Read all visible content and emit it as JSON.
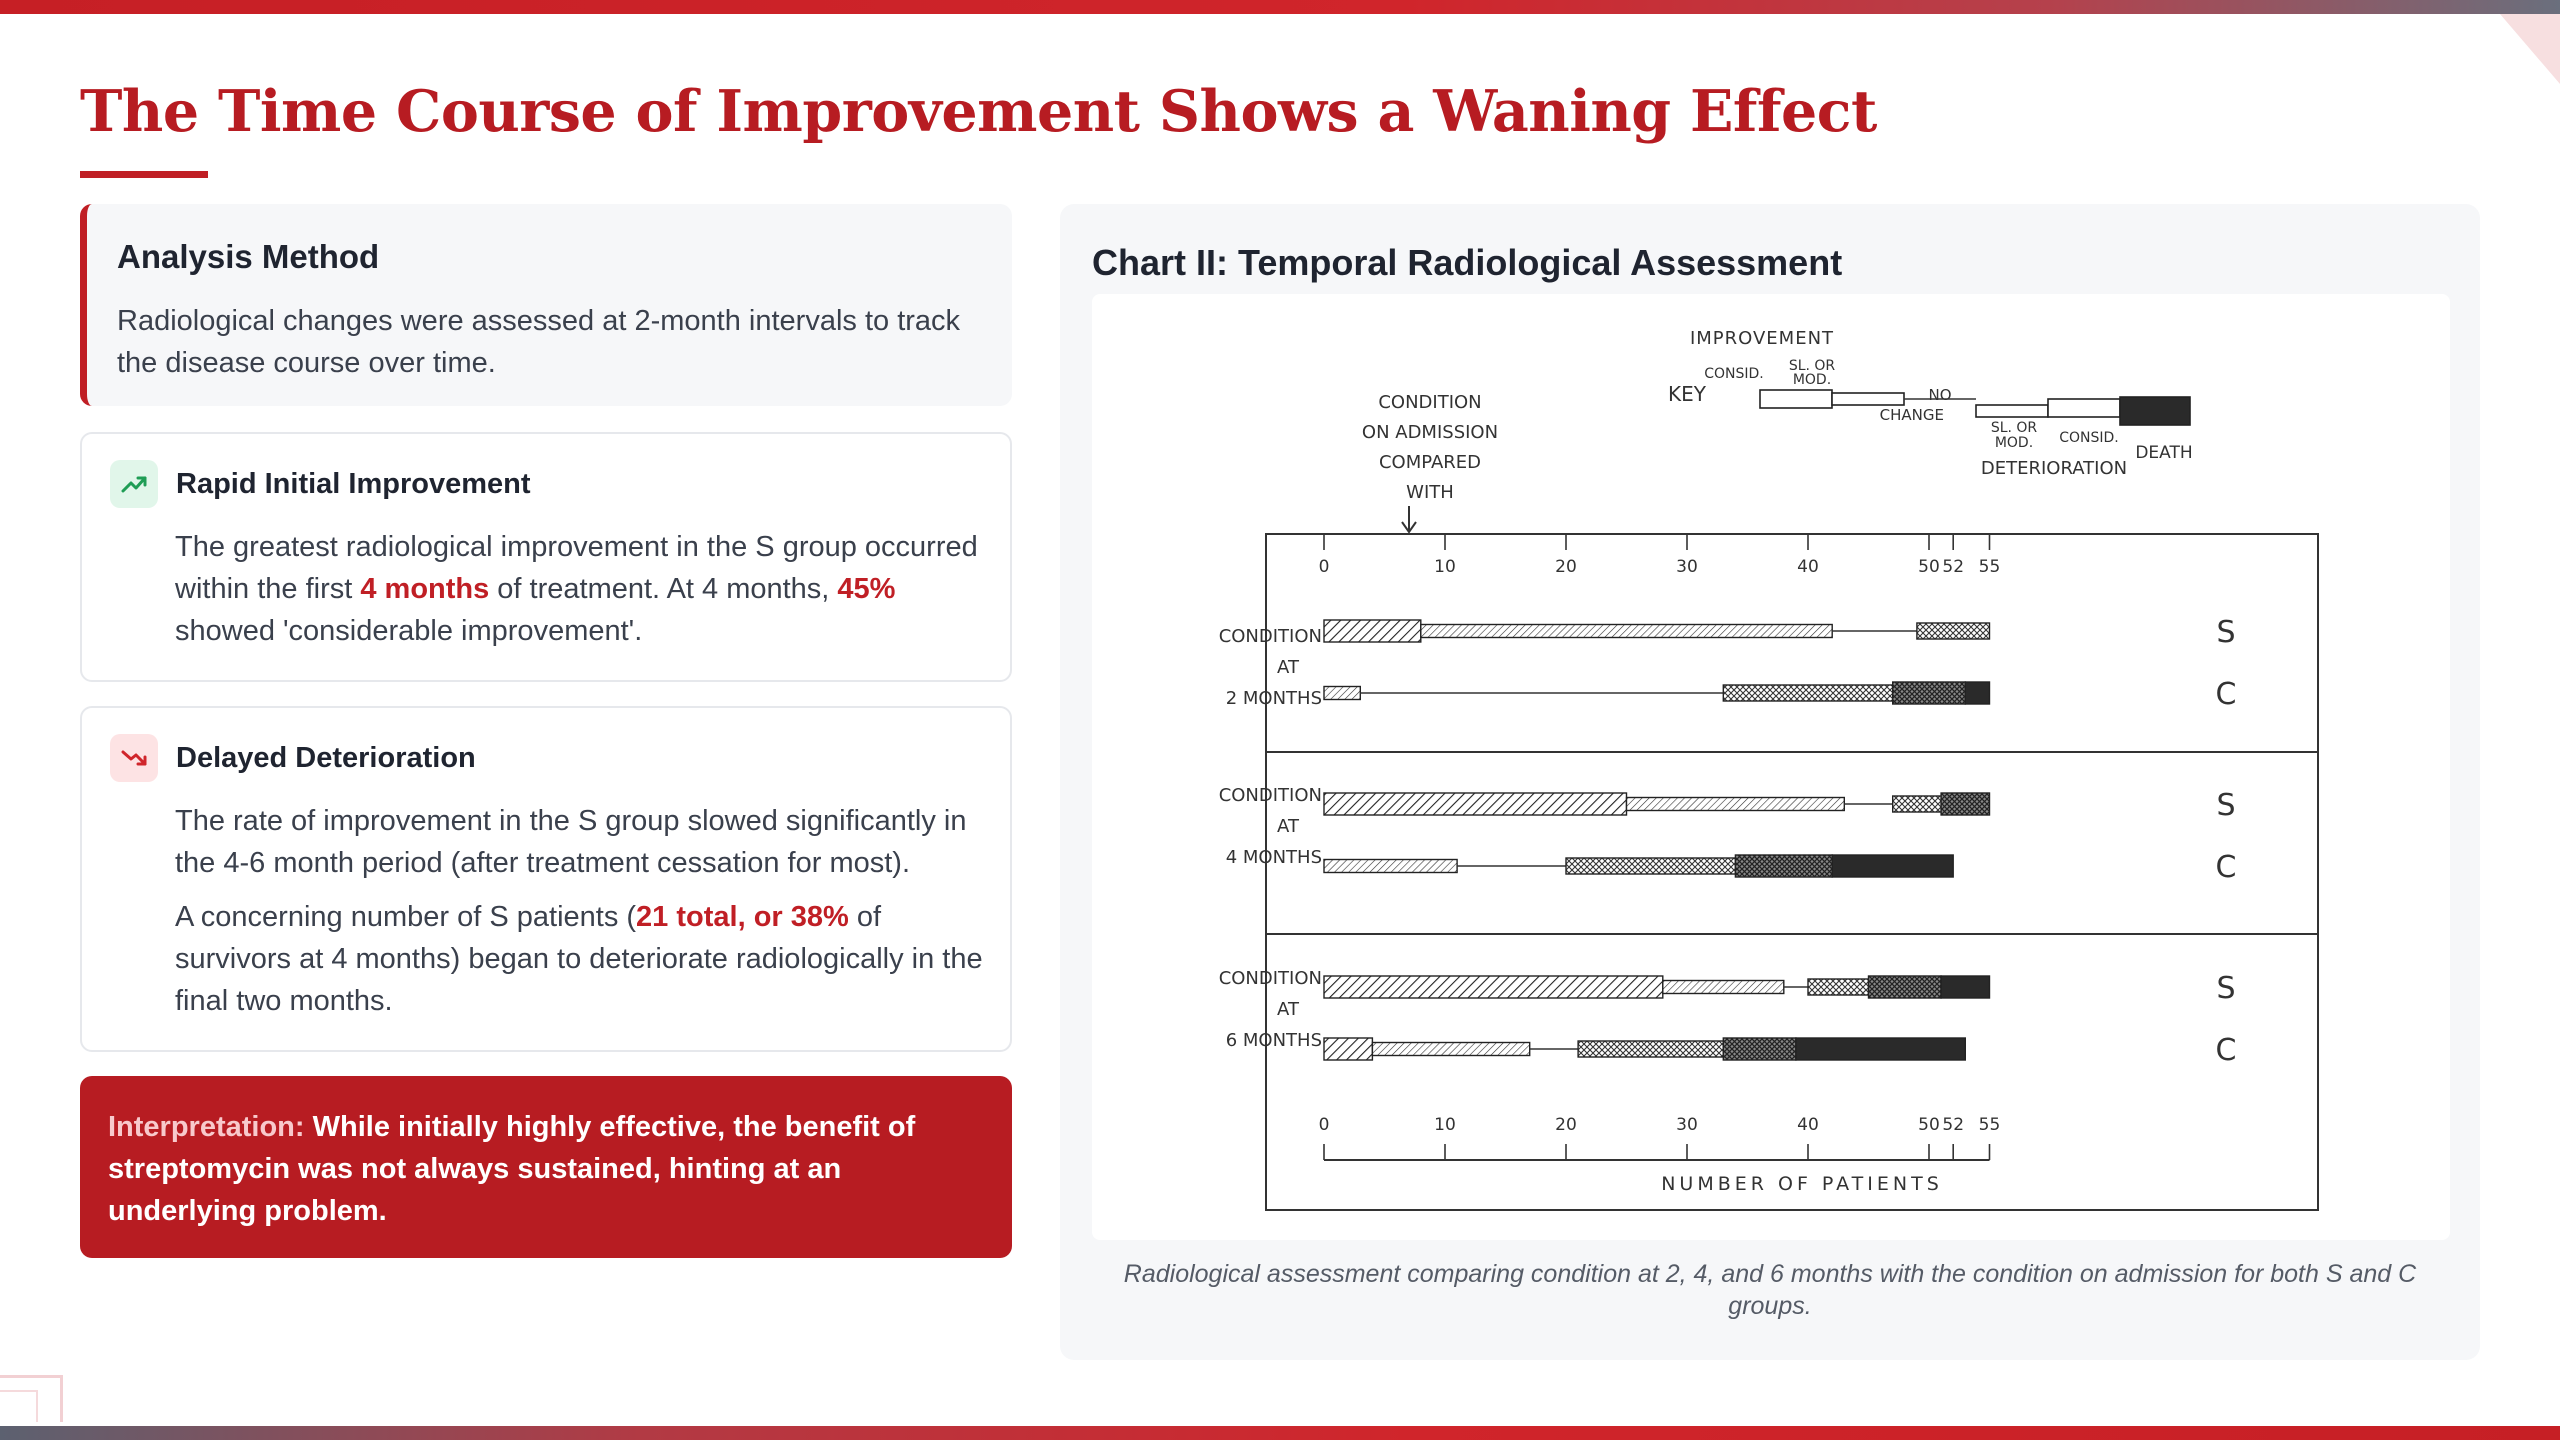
{
  "title": "The Time Course of Improvement Shows a Waning Effect",
  "method": {
    "heading": "Analysis Method",
    "text": "Radiological changes were assessed at 2-month intervals to track the disease course over time."
  },
  "finding1": {
    "icon": "trend-up-icon",
    "heading": "Rapid Initial Improvement",
    "text_a": "The greatest radiological improvement in the S group occurred within the first ",
    "hl_a": "4 months",
    "text_b": " of treatment. At 4 months, ",
    "hl_b": "45%",
    "text_c": " showed 'considerable improvement'."
  },
  "finding2": {
    "icon": "trend-down-icon",
    "heading": "Delayed Deterioration",
    "p1": "The rate of improvement in the S group slowed significantly in the 4-6 month period (after treatment cessation for most).",
    "p2_a": "A concerning number of S patients (",
    "p2_hl": "21 total, or 38%",
    "p2_b": " of survivors at 4 months) began to deteriorate radiologically in the final two months."
  },
  "interpretation": {
    "label": "Interpretation:",
    "text": " While initially highly effective, the benefit of streptomycin was not always sustained, hinting at an underlying problem."
  },
  "chart": {
    "title": "Chart II: Temporal Radiological Assessment",
    "caption": "Radiological assessment comparing condition at 2, 4, and 6 months with the condition on admission for both S and C groups.",
    "key": {
      "key_label": "KEY",
      "improvement": "IMPROVEMENT",
      "consid": "CONSID.",
      "sl_or": "SL. OR",
      "mod": "MOD.",
      "no": "NO",
      "change": "CHANGE",
      "death": "DEATH",
      "deterioration": "DETERIORATION"
    },
    "compare_label": [
      "CONDITION",
      "ON ADMISSION",
      "COMPARED",
      "WITH"
    ],
    "row_label": [
      "CONDITION",
      "AT"
    ],
    "xlabel": "NUMBER OF PATIENTS"
  },
  "chart_data": {
    "type": "bar",
    "stacked": true,
    "orientation": "horizontal",
    "title": "Chart II: Temporal Radiological Assessment",
    "xlabel": "NUMBER OF PATIENTS",
    "xticks": [
      0,
      10,
      20,
      30,
      40,
      50,
      52,
      55
    ],
    "segments": [
      "CONSID. IMPROVEMENT",
      "SL. OR MOD. IMPROVEMENT",
      "NO CHANGE",
      "SL. OR MOD. DETERIORATION",
      "CONSID. DETERIORATION",
      "DEATH"
    ],
    "categories": [
      "2 MONTHS S",
      "2 MONTHS C",
      "4 MONTHS S",
      "4 MONTHS C",
      "6 MONTHS S",
      "6 MONTHS C"
    ],
    "rows": [
      {
        "label": "2 MONTHS",
        "group": "S",
        "values": [
          8,
          34,
          7,
          6,
          0,
          0
        ]
      },
      {
        "label": "2 MONTHS",
        "group": "C",
        "values": [
          0,
          3,
          30,
          14,
          6,
          2
        ]
      },
      {
        "label": "4 MONTHS",
        "group": "S",
        "values": [
          25,
          18,
          4,
          4,
          4,
          0
        ]
      },
      {
        "label": "4 MONTHS",
        "group": "C",
        "values": [
          0,
          11,
          9,
          14,
          8,
          10
        ]
      },
      {
        "label": "6 MONTHS",
        "group": "S",
        "values": [
          28,
          10,
          2,
          5,
          6,
          4
        ]
      },
      {
        "label": "6 MONTHS",
        "group": "C",
        "values": [
          4,
          13,
          4,
          12,
          6,
          14
        ]
      }
    ],
    "colors": {
      "accent": "#c01f25"
    }
  }
}
